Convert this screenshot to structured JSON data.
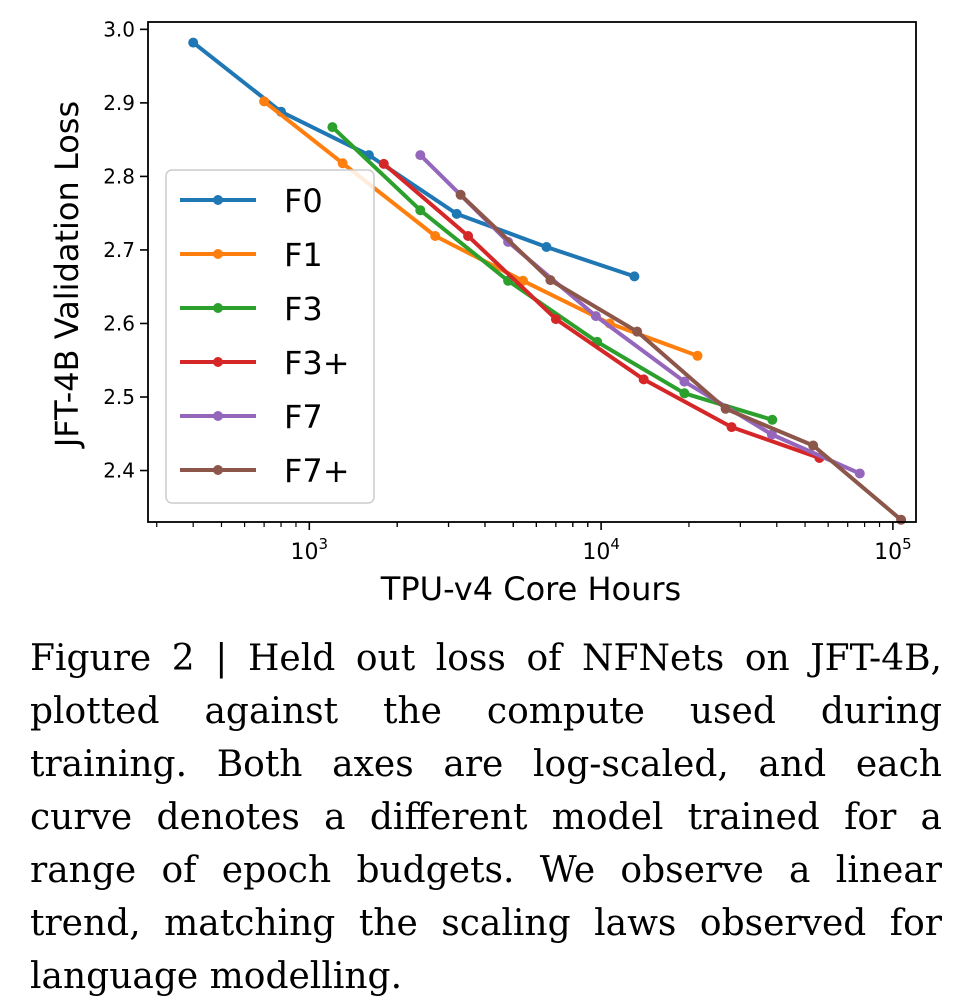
{
  "chart_data": {
    "type": "line",
    "xscale": "log",
    "xlabel": "TPU-v4 Core Hours",
    "ylabel": "JFT-4B Validation Loss",
    "xlim": [
      280,
      120000
    ],
    "ylim": [
      2.33,
      3.01
    ],
    "xticks": [
      {
        "value": 1000,
        "base": "10",
        "exp": "3"
      },
      {
        "value": 10000,
        "base": "10",
        "exp": "4"
      },
      {
        "value": 100000,
        "base": "10",
        "exp": "5"
      }
    ],
    "yticks": [
      "3.0",
      "2.9",
      "2.8",
      "2.7",
      "2.6",
      "2.5",
      "2.4"
    ],
    "legend_position": "lower-left",
    "series": [
      {
        "name": "F0",
        "color": "#1f77b4",
        "x": [
          400,
          800,
          1600,
          3200,
          6500,
          13000
        ],
        "y": [
          2.982,
          2.888,
          2.829,
          2.749,
          2.704,
          2.664
        ]
      },
      {
        "name": "F1",
        "color": "#ff7f0e",
        "x": [
          700,
          1300,
          2700,
          5400,
          10700,
          21400
        ],
        "y": [
          2.902,
          2.818,
          2.719,
          2.658,
          2.6,
          2.556
        ]
      },
      {
        "name": "F3",
        "color": "#2ca02c",
        "x": [
          1200,
          2400,
          4800,
          9700,
          19300,
          38600
        ],
        "y": [
          2.867,
          2.754,
          2.658,
          2.575,
          2.505,
          2.469
        ]
      },
      {
        "name": "F3+",
        "color": "#d62728",
        "x": [
          1800,
          3500,
          7000,
          14000,
          28000,
          56000
        ],
        "y": [
          2.817,
          2.719,
          2.606,
          2.524,
          2.459,
          2.417
        ]
      },
      {
        "name": "F7",
        "color": "#9467bd",
        "x": [
          2400,
          4800,
          9600,
          19300,
          38500,
          77000
        ],
        "y": [
          2.829,
          2.711,
          2.61,
          2.521,
          2.449,
          2.396
        ]
      },
      {
        "name": "F7+",
        "color": "#8c564b",
        "x": [
          3300,
          6700,
          13300,
          26700,
          53300,
          106700
        ],
        "y": [
          2.775,
          2.659,
          2.589,
          2.484,
          2.434,
          2.333
        ]
      }
    ]
  },
  "caption": "Figure 2 | Held out loss of NFNets on JFT-4B, plotted against the compute used during training. Both axes are log-scaled, and each curve denotes a different model trained for a range of epoch budgets. We observe a linear trend, matching the scaling laws observed for language modelling."
}
